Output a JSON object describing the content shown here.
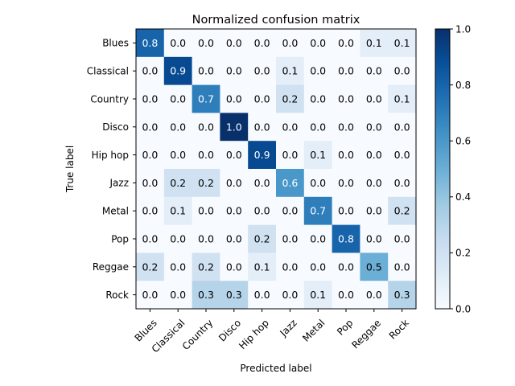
{
  "chart_data": {
    "type": "heatmap",
    "title": "Normalized confusion matrix",
    "xlabel": "Predicted label",
    "ylabel": "True label",
    "x_categories": [
      "Blues",
      "Classical",
      "Country",
      "Disco",
      "Hip hop",
      "Jazz",
      "Metal",
      "Pop",
      "Reggae",
      "Rock"
    ],
    "y_categories": [
      "Blues",
      "Classical",
      "Country",
      "Disco",
      "Hip hop",
      "Jazz",
      "Metal",
      "Pop",
      "Reggae",
      "Rock"
    ],
    "values": [
      [
        0.8,
        0.0,
        0.0,
        0.0,
        0.0,
        0.0,
        0.0,
        0.0,
        0.1,
        0.1
      ],
      [
        0.0,
        0.9,
        0.0,
        0.0,
        0.0,
        0.1,
        0.0,
        0.0,
        0.0,
        0.0
      ],
      [
        0.0,
        0.0,
        0.7,
        0.0,
        0.0,
        0.2,
        0.0,
        0.0,
        0.0,
        0.1
      ],
      [
        0.0,
        0.0,
        0.0,
        1.0,
        0.0,
        0.0,
        0.0,
        0.0,
        0.0,
        0.0
      ],
      [
        0.0,
        0.0,
        0.0,
        0.0,
        0.9,
        0.0,
        0.1,
        0.0,
        0.0,
        0.0
      ],
      [
        0.0,
        0.2,
        0.2,
        0.0,
        0.0,
        0.6,
        0.0,
        0.0,
        0.0,
        0.0
      ],
      [
        0.0,
        0.1,
        0.0,
        0.0,
        0.0,
        0.0,
        0.7,
        0.0,
        0.0,
        0.2
      ],
      [
        0.0,
        0.0,
        0.0,
        0.0,
        0.2,
        0.0,
        0.0,
        0.8,
        0.0,
        0.0
      ],
      [
        0.2,
        0.0,
        0.2,
        0.0,
        0.1,
        0.0,
        0.0,
        0.0,
        0.5,
        0.0
      ],
      [
        0.0,
        0.0,
        0.3,
        0.3,
        0.0,
        0.0,
        0.1,
        0.0,
        0.0,
        0.3
      ]
    ],
    "colormap": "Blues",
    "colorbar": {
      "range": [
        0.0,
        1.0
      ],
      "ticks": [
        0.0,
        0.2,
        0.4,
        0.6,
        0.8,
        1.0
      ],
      "tick_labels": [
        "0.0",
        "0.2",
        "0.4",
        "0.6",
        "0.8",
        "1.0"
      ]
    }
  }
}
